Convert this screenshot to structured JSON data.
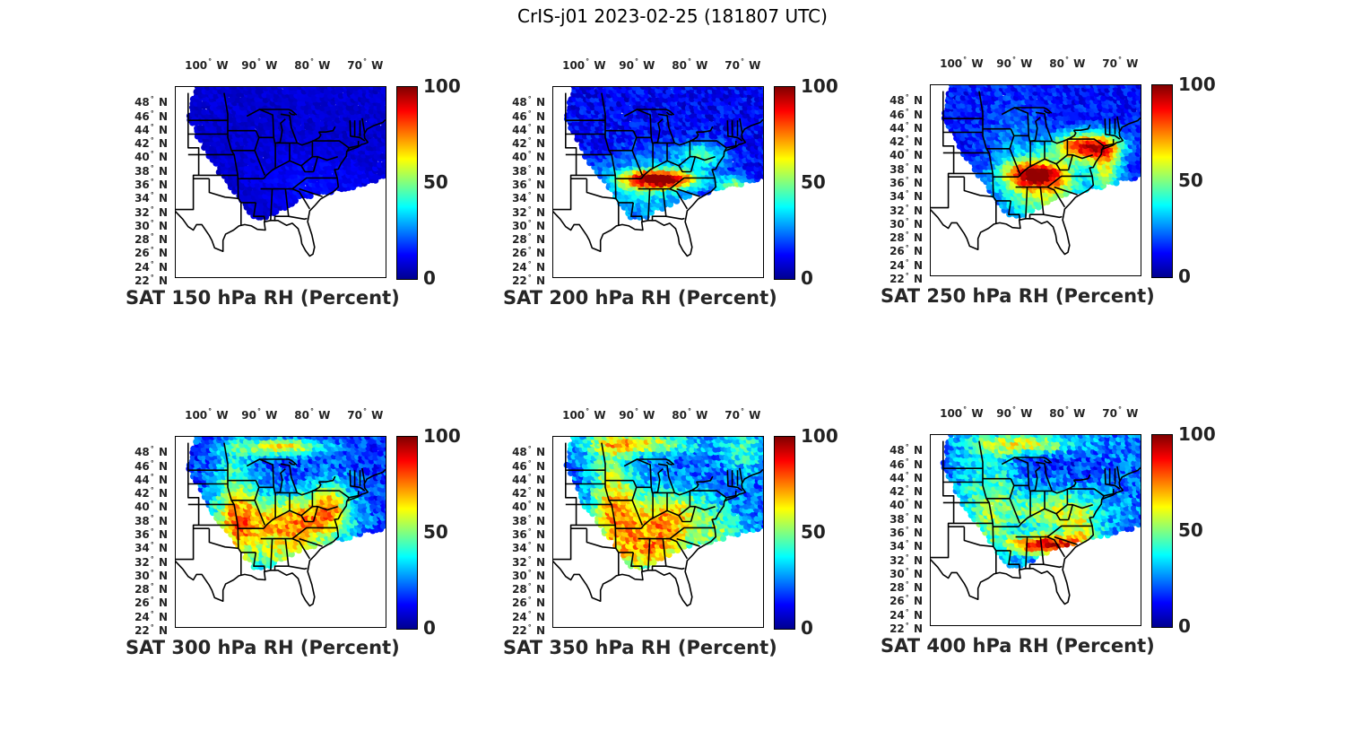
{
  "title": "CrIS-j01 2023-02-25 (181807 UTC)",
  "colormap": "jet",
  "colors": {
    "low": "#00008f",
    "mid": "#80ff80",
    "high": "#800000",
    "state_lines": "#000000"
  },
  "lon_ticks": [
    {
      "deg": "100",
      "hem": "W"
    },
    {
      "deg": "90",
      "hem": "W"
    },
    {
      "deg": "80",
      "hem": "W"
    },
    {
      "deg": "70",
      "hem": "W"
    }
  ],
  "lat_ticks": [
    {
      "deg": "48",
      "hem": "N"
    },
    {
      "deg": "46",
      "hem": "N"
    },
    {
      "deg": "44",
      "hem": "N"
    },
    {
      "deg": "42",
      "hem": "N"
    },
    {
      "deg": "40",
      "hem": "N"
    },
    {
      "deg": "38",
      "hem": "N"
    },
    {
      "deg": "36",
      "hem": "N"
    },
    {
      "deg": "34",
      "hem": "N"
    },
    {
      "deg": "32",
      "hem": "N"
    },
    {
      "deg": "30",
      "hem": "N"
    },
    {
      "deg": "28",
      "hem": "N"
    },
    {
      "deg": "26",
      "hem": "N"
    },
    {
      "deg": "24",
      "hem": "N"
    },
    {
      "deg": "22",
      "hem": "N"
    }
  ],
  "colorbar": {
    "min": "0",
    "mid": "50",
    "max": "100"
  },
  "panels": [
    {
      "title": "SAT 150 hPa RH (Percent)",
      "level": 150
    },
    {
      "title": "SAT 200 hPa RH (Percent)",
      "level": 200
    },
    {
      "title": "SAT 250 hPa RH (Percent)",
      "level": 250
    },
    {
      "title": "SAT 300 hPa RH (Percent)",
      "level": 300
    },
    {
      "title": "SAT 350 hPa RH (Percent)",
      "level": 350
    },
    {
      "title": "SAT 400 hPa RH (Percent)",
      "level": 400
    }
  ]
}
